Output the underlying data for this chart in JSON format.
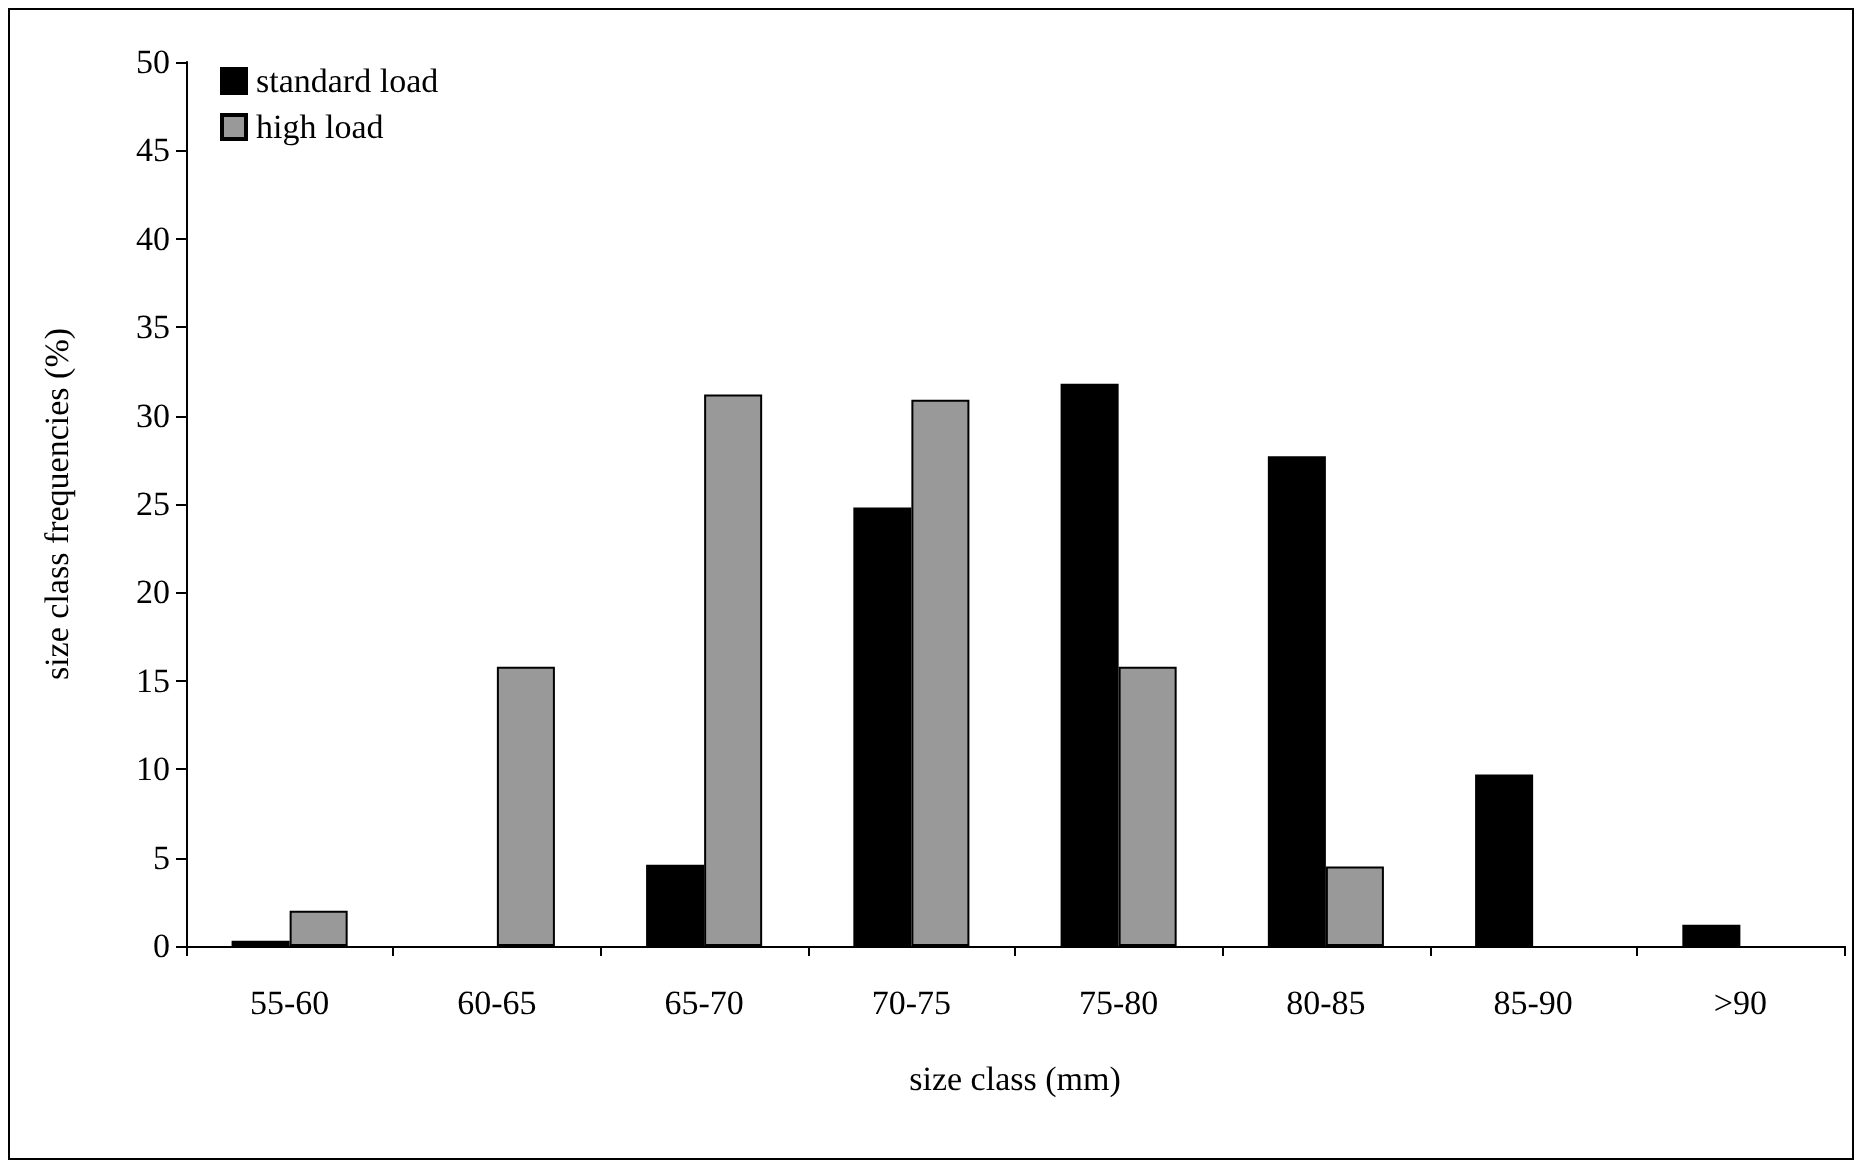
{
  "chart_data": {
    "type": "bar",
    "xlabel": "size class (mm)",
    "ylabel": "size class frequencies (%)",
    "categories": [
      "55-60",
      "60-65",
      "65-70",
      "70-75",
      "75-80",
      "80-85",
      "85-90",
      ">90"
    ],
    "series": [
      {
        "name": "standard load",
        "color": "#000000",
        "values": [
          0.3,
          0,
          4.6,
          24.8,
          31.8,
          27.7,
          9.7,
          1.2
        ]
      },
      {
        "name": "high load",
        "color": "#999999",
        "values": [
          2.0,
          15.8,
          31.2,
          30.9,
          15.8,
          4.5,
          0,
          0
        ]
      }
    ],
    "ylim": [
      0,
      50
    ],
    "yticks": [
      0,
      5,
      10,
      15,
      20,
      25,
      30,
      35,
      40,
      45,
      50
    ],
    "grid": false,
    "legend": "top left"
  }
}
